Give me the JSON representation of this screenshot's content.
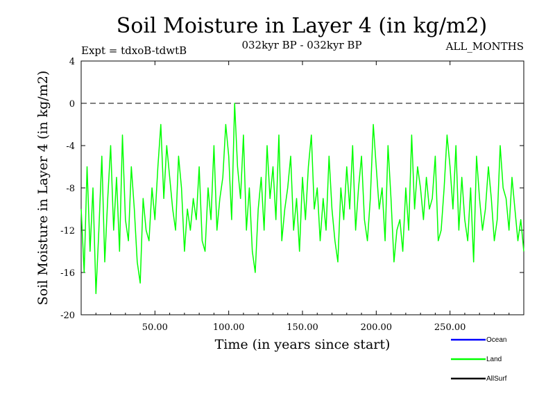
{
  "chart_data": {
    "type": "line",
    "title": "Soil Moisture in Layer 4 (in kg/m2)",
    "subtitle_left": "Expt = tdxoB-tdwtB",
    "subtitle_center": "032kyr BP - 032kyr BP",
    "subtitle_right": "ALL_MONTHS",
    "xlabel": "Time (in years since start)",
    "ylabel": "Soil Moisture in Layer 4 (in kg/m2)",
    "xlim": [
      0,
      300
    ],
    "ylim": [
      -20,
      4
    ],
    "x_ticks": [
      50,
      100,
      150,
      200,
      250
    ],
    "x_tick_labels": [
      "50.00",
      "100.00",
      "150.00",
      "200.00",
      "250.00"
    ],
    "y_ticks": [
      4,
      0,
      -4,
      -8,
      -12,
      -16,
      -20
    ],
    "y_tick_labels": [
      "4",
      "0",
      "-4",
      "-8",
      "-12",
      "-16",
      "-20"
    ],
    "reference_line": 0,
    "legend": [
      {
        "name": "Ocean",
        "color": "#0000ff"
      },
      {
        "name": "Land",
        "color": "#00ff00"
      },
      {
        "name": "AllSurf",
        "color": "#000000"
      }
    ],
    "series": [
      {
        "name": "Land",
        "color": "#00ff00",
        "x": [
          0,
          2,
          4,
          6,
          8,
          10,
          12,
          14,
          16,
          18,
          20,
          22,
          24,
          26,
          28,
          30,
          32,
          34,
          36,
          38,
          40,
          42,
          44,
          46,
          48,
          50,
          52,
          54,
          56,
          58,
          60,
          62,
          64,
          66,
          68,
          70,
          72,
          74,
          76,
          78,
          80,
          82,
          84,
          86,
          88,
          90,
          92,
          94,
          96,
          98,
          100,
          102,
          104,
          106,
          108,
          110,
          112,
          114,
          116,
          118,
          120,
          122,
          124,
          126,
          128,
          130,
          132,
          134,
          136,
          138,
          140,
          142,
          144,
          146,
          148,
          150,
          152,
          154,
          156,
          158,
          160,
          162,
          164,
          166,
          168,
          170,
          172,
          174,
          176,
          178,
          180,
          182,
          184,
          186,
          188,
          190,
          192,
          194,
          196,
          198,
          200,
          202,
          204,
          206,
          208,
          210,
          212,
          214,
          216,
          218,
          220,
          222,
          224,
          226,
          228,
          230,
          232,
          234,
          236,
          238,
          240,
          242,
          244,
          246,
          248,
          250,
          252,
          254,
          256,
          258,
          260,
          262,
          264,
          266,
          268,
          270,
          272,
          274,
          276,
          278,
          280,
          282,
          284,
          286,
          288,
          290,
          292,
          294,
          296,
          298,
          300
        ],
        "y": [
          -10,
          -16,
          -6,
          -14,
          -8,
          -18,
          -12,
          -5,
          -15,
          -9,
          -4,
          -12,
          -7,
          -14,
          -3,
          -11,
          -13,
          -6,
          -10,
          -15,
          -17,
          -9,
          -12,
          -13,
          -8,
          -11,
          -6,
          -2,
          -9,
          -4,
          -7,
          -10,
          -12,
          -5,
          -8,
          -14,
          -10,
          -12,
          -9,
          -11,
          -6,
          -13,
          -14,
          -8,
          -11,
          -4,
          -12,
          -9,
          -7,
          -2,
          -5,
          -11,
          0,
          -6,
          -9,
          -3,
          -12,
          -8,
          -14,
          -16,
          -10,
          -7,
          -12,
          -4,
          -9,
          -6,
          -11,
          -3,
          -13,
          -10,
          -8,
          -5,
          -12,
          -9,
          -14,
          -7,
          -11,
          -6,
          -3,
          -10,
          -8,
          -13,
          -9,
          -12,
          -5,
          -10,
          -13,
          -15,
          -8,
          -11,
          -6,
          -10,
          -4,
          -12,
          -8,
          -5,
          -11,
          -13,
          -9,
          -2,
          -6,
          -10,
          -8,
          -13,
          -4,
          -9,
          -15,
          -12,
          -11,
          -14,
          -8,
          -12,
          -3,
          -10,
          -6,
          -8,
          -11,
          -7,
          -10,
          -9,
          -5,
          -13,
          -12,
          -8,
          -3,
          -6,
          -10,
          -4,
          -12,
          -7,
          -11,
          -13,
          -8,
          -15,
          -5,
          -9,
          -12,
          -10,
          -6,
          -9,
          -13,
          -11,
          -4,
          -8,
          -9,
          -12,
          -7,
          -10,
          -13,
          -11,
          -14
        ]
      },
      {
        "name": "Ocean",
        "color": "#0000ff",
        "x": [],
        "y": []
      },
      {
        "name": "AllSurf",
        "color": "#000000",
        "x": [],
        "y": []
      }
    ]
  }
}
